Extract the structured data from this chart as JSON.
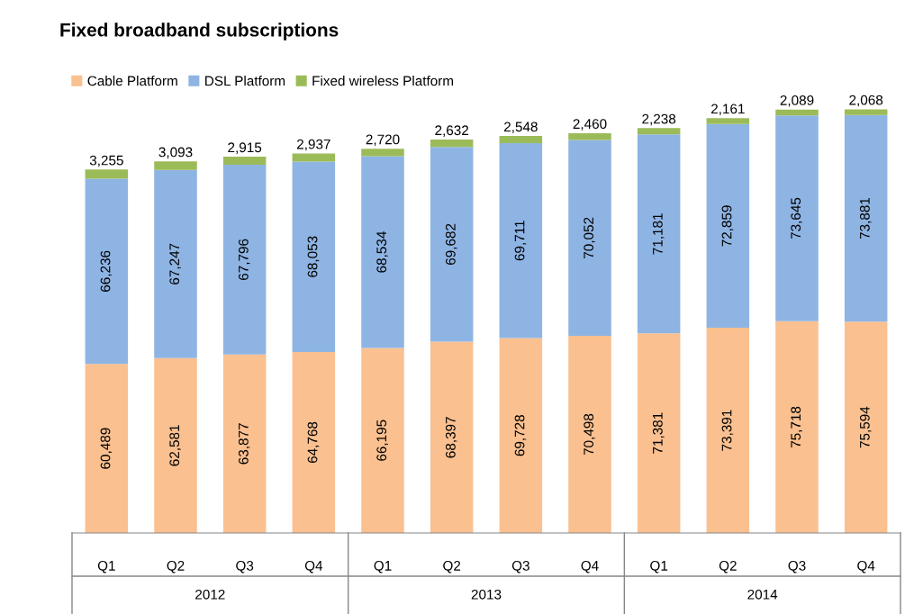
{
  "chart_data": {
    "type": "bar",
    "title": "Fixed broadband subscriptions",
    "stacked": true,
    "legend": "top left",
    "grid": false,
    "categories": [
      "Q1",
      "Q2",
      "Q3",
      "Q4",
      "Q1",
      "Q2",
      "Q3",
      "Q4",
      "Q1",
      "Q2",
      "Q3",
      "Q4"
    ],
    "series": [
      {
        "name": "Cable Platform",
        "color": "#fac090",
        "values": [
          60489,
          62581,
          63877,
          64768,
          66195,
          68397,
          69728,
          70498,
          71381,
          73391,
          75718,
          75594
        ],
        "value_labels": [
          "60,489",
          "62,581",
          "63,877",
          "64,768",
          "66,195",
          "68,397",
          "69,728",
          "70,498",
          "71,381",
          "73,391",
          "75,718",
          "75,594"
        ]
      },
      {
        "name": "DSL Platform",
        "color": "#8eb4e3",
        "values": [
          66236,
          67247,
          67796,
          68053,
          68534,
          69682,
          69711,
          70052,
          71181,
          72859,
          73645,
          73881
        ],
        "value_labels": [
          "66,236",
          "67,247",
          "67,796",
          "68,053",
          "68,534",
          "69,682",
          "69,711",
          "70,052",
          "71,181",
          "72,859",
          "73,645",
          "73,881"
        ]
      },
      {
        "name": "Fixed wireless Platform",
        "color": "#9bbb59",
        "values": [
          3255,
          3093,
          2915,
          2937,
          2720,
          2632,
          2548,
          2460,
          2238,
          2161,
          2089,
          2068
        ],
        "value_labels": [
          "3,255",
          "3,093",
          "2,915",
          "2,937",
          "2,720",
          "2,632",
          "2,548",
          "2,460",
          "2,238",
          "2,161",
          "2,089",
          "2,068"
        ]
      }
    ],
    "annotations": [
      "2012",
      "2013",
      "2014"
    ]
  }
}
